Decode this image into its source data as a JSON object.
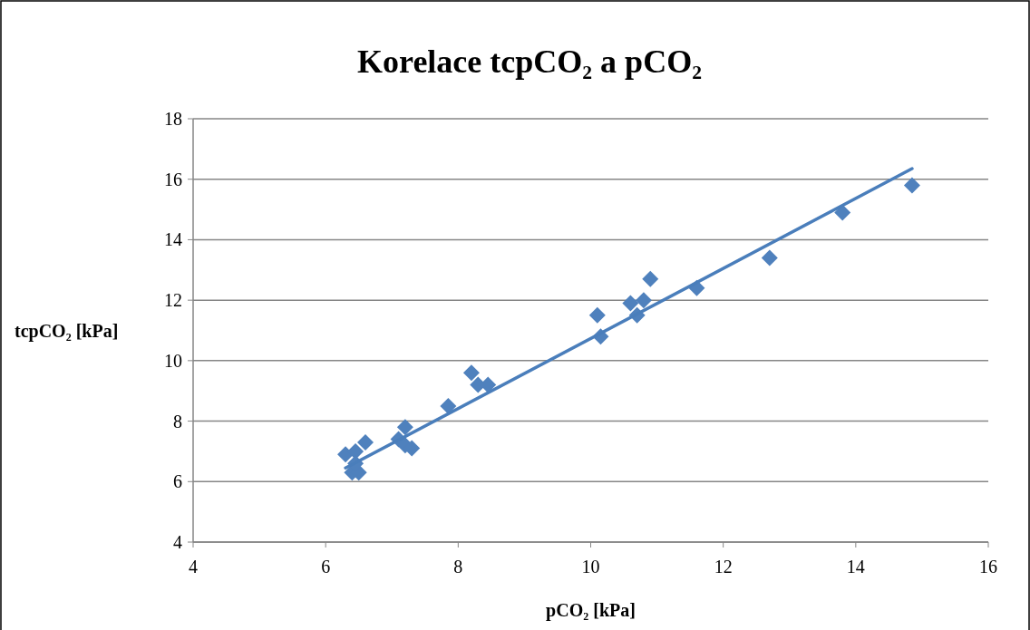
{
  "chart_data": {
    "type": "scatter",
    "title": "Korelace tcpCO₂ a pCO₂",
    "xlabel": "pCO₂ [kPa]",
    "ylabel": "tcpCO₂ [kPa]",
    "xlim": [
      4,
      16
    ],
    "xticks": [
      4,
      6,
      8,
      10,
      12,
      14,
      16
    ],
    "ylim": [
      4,
      18
    ],
    "yticks": [
      4,
      6,
      8,
      10,
      12,
      14,
      16,
      18
    ],
    "grid": "y",
    "marker": "diamond",
    "series": [
      {
        "color": "#4f81bd",
        "x": [
          6.3,
          6.45,
          6.4,
          6.5,
          6.45,
          6.6,
          7.2,
          7.1,
          7.2,
          7.3,
          7.85,
          8.2,
          8.3,
          8.45,
          10.1,
          10.15,
          10.6,
          10.7,
          10.8,
          10.9,
          11.6,
          12.7,
          13.8,
          14.85
        ],
        "values": [
          6.9,
          7.0,
          6.3,
          6.3,
          6.6,
          7.3,
          7.8,
          7.4,
          7.2,
          7.1,
          8.5,
          9.6,
          9.2,
          9.2,
          11.5,
          10.8,
          11.9,
          11.5,
          12.0,
          12.7,
          12.4,
          13.4,
          14.9,
          15.8
        ]
      },
      {
        "type": "line",
        "color": "#4a7ebb",
        "marker": "none",
        "x": [
          6.3,
          14.85
        ],
        "values": [
          6.45,
          16.35
        ]
      }
    ]
  }
}
